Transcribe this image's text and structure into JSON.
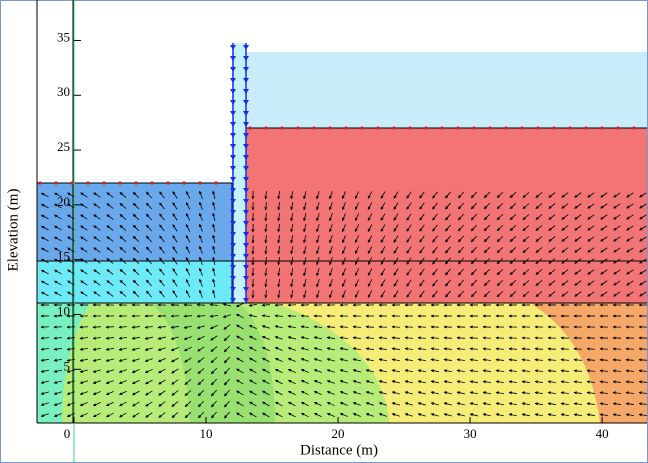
{
  "chart_data": {
    "type": "contour",
    "x_label": "Distance (m)",
    "y_label": "Elevation (m)",
    "xlim": [
      -2.8,
      43.4
    ],
    "ylim": [
      0.1,
      38.6
    ],
    "xticks": [
      0,
      10,
      20,
      30,
      40
    ],
    "yticks": [
      5,
      10,
      15,
      20,
      25,
      30,
      35
    ]
  }
}
